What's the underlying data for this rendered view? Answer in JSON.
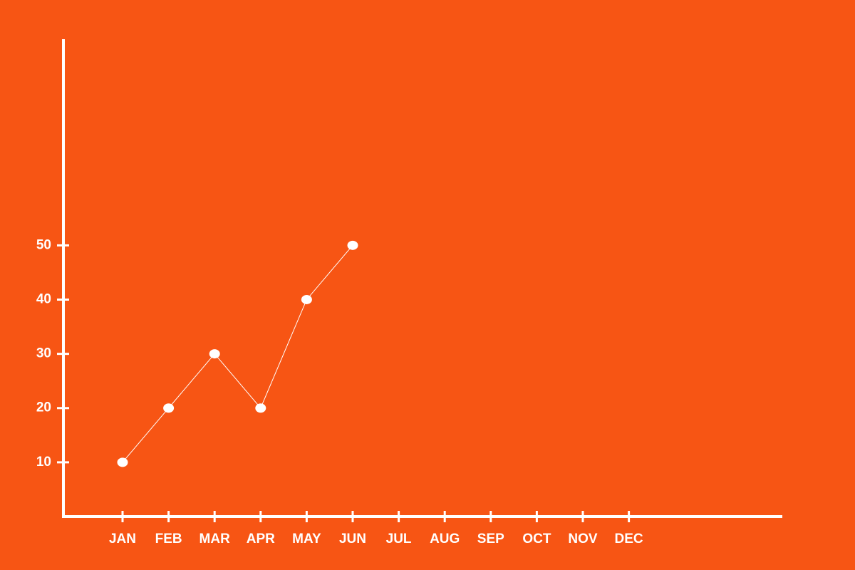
{
  "chart_data": {
    "type": "line",
    "categories": [
      "JAN",
      "FEB",
      "MAR",
      "APR",
      "MAY",
      "JUN",
      "JUL",
      "AUG",
      "SEP",
      "OCT",
      "NOV",
      "DEC"
    ],
    "values": [
      10,
      20,
      30,
      20,
      40,
      50,
      null,
      null,
      null,
      null,
      null,
      null
    ],
    "color": "#ffffff",
    "ylim": [
      0,
      88
    ],
    "yticks": [
      10,
      20,
      30,
      40,
      50
    ],
    "grid": false
  }
}
